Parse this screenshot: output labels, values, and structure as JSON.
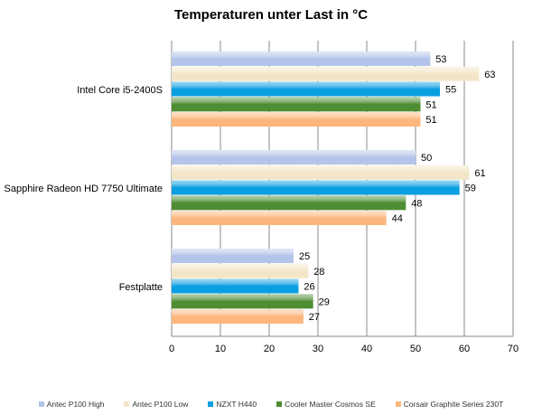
{
  "chart_data": {
    "type": "bar",
    "orientation": "horizontal",
    "title": "Temperaturen unter Last in °C",
    "categories": [
      "Intel Core i5-2400S",
      "Sapphire Radeon HD 7750 Ultimate",
      "Festplatte"
    ],
    "series": [
      {
        "name": "Antec P100 High",
        "values": [
          53,
          50,
          25
        ],
        "color": "#b3c3ea"
      },
      {
        "name": "Antec P100 Low",
        "values": [
          63,
          61,
          28
        ],
        "color": "#f3e6c8"
      },
      {
        "name": "NZXT H440",
        "values": [
          55,
          59,
          26
        ],
        "color": "#0a9fe0"
      },
      {
        "name": "Cooler Master Cosmos SE",
        "values": [
          51,
          48,
          29
        ],
        "color": "#4e8d32"
      },
      {
        "name": "Corsair Graphite Series 230T",
        "values": [
          51,
          44,
          27
        ],
        "color": "#fdb77e"
      }
    ],
    "xlim": [
      0,
      70
    ],
    "xticks": [
      "0",
      "10",
      "20",
      "30",
      "40",
      "50",
      "60",
      "70"
    ],
    "grid": true,
    "legend": "bottom"
  }
}
